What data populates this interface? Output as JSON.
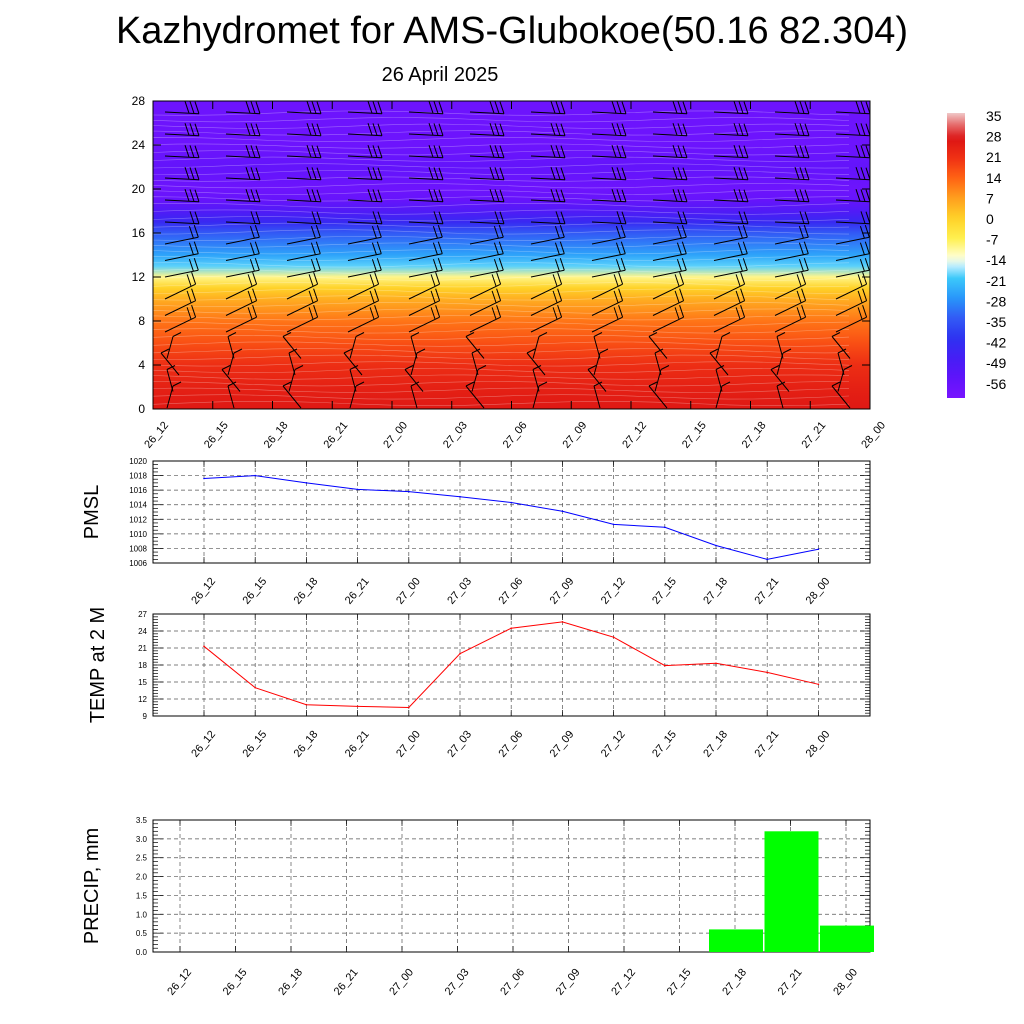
{
  "title": "Kazhydromet for AMS-Glubokoe(50.16 82.304)",
  "subtitle": "26 April 2025",
  "time_labels": [
    "26_12",
    "26_15",
    "26_18",
    "26_21",
    "27_00",
    "27_03",
    "27_06",
    "27_09",
    "27_12",
    "27_15",
    "27_18",
    "27_21",
    "28_00"
  ],
  "chart_data": [
    {
      "type": "heatmap",
      "title": "",
      "xlabel": "",
      "ylabel": "",
      "x": [
        "26_12",
        "26_15",
        "26_18",
        "26_21",
        "27_00",
        "27_03",
        "27_06",
        "27_09",
        "27_12",
        "27_15",
        "27_18",
        "27_21",
        "28_00"
      ],
      "y_ticks": [
        0,
        4,
        8,
        12,
        16,
        20,
        24,
        28
      ],
      "ylim": [
        0,
        28
      ],
      "colorbar_ticks": [
        35,
        28,
        21,
        14,
        7,
        0,
        -7,
        -14,
        -21,
        -28,
        -35,
        -42,
        -49,
        -56
      ],
      "colorbar_range": [
        -63,
        37
      ],
      "profile": {
        "heights": [
          0,
          2,
          4,
          6,
          8,
          10,
          11,
          12,
          13,
          14,
          16,
          17,
          18,
          19,
          20,
          22,
          24,
          28
        ],
        "values": [
          27,
          25,
          22,
          17,
          12,
          5,
          0,
          -10,
          -20,
          -26,
          -35,
          -45,
          -52,
          -58,
          -60,
          -57,
          -60,
          -60
        ]
      },
      "overlay": "wind barbs"
    },
    {
      "type": "line",
      "ylabel": "PMSL",
      "x": [
        "26_12",
        "26_15",
        "26_18",
        "26_21",
        "27_00",
        "27_03",
        "27_06",
        "27_09",
        "27_12",
        "27_15",
        "27_18",
        "27_21",
        "28_00"
      ],
      "y_ticks": [
        1006,
        1008,
        1010,
        1012,
        1014,
        1016,
        1018,
        1020
      ],
      "ylim": [
        1006,
        1020
      ],
      "series": [
        {
          "values": [
            1017.6,
            1018.0,
            1017.0,
            1016.1,
            1015.8,
            1015.1,
            1014.3,
            1013.1,
            1011.3,
            1010.9,
            1008.4,
            1006.5,
            1007.9
          ],
          "color": "#0000ff"
        }
      ],
      "grid": true
    },
    {
      "type": "line",
      "ylabel": "TEMP at 2 M",
      "x": [
        "26_12",
        "26_15",
        "26_18",
        "26_21",
        "27_00",
        "27_03",
        "27_06",
        "27_09",
        "27_12",
        "27_15",
        "27_18",
        "27_21",
        "28_00"
      ],
      "y_ticks": [
        9,
        12,
        15,
        18,
        21,
        24,
        27
      ],
      "ylim": [
        9,
        27
      ],
      "series": [
        {
          "values": [
            21.3,
            14.0,
            11.0,
            10.7,
            10.5,
            20.0,
            24.5,
            25.6,
            22.9,
            17.9,
            18.3,
            16.7,
            14.6
          ],
          "color": "#ff0000"
        }
      ],
      "grid": true
    },
    {
      "type": "bar",
      "ylabel": "PRECIP, mm",
      "categories": [
        "26_12",
        "26_15",
        "26_18",
        "26_21",
        "27_00",
        "27_03",
        "27_06",
        "27_09",
        "27_12",
        "27_15",
        "27_18",
        "27_21",
        "28_00"
      ],
      "y_ticks": [
        "0.0",
        "0.5",
        "1.0",
        "1.5",
        "2.0",
        "2.5",
        "3.0",
        "3.5"
      ],
      "ylim": [
        0,
        3.5
      ],
      "series": [
        {
          "values": [
            0,
            0,
            0,
            0,
            0,
            0,
            0,
            0,
            0,
            0,
            0.6,
            3.2,
            0.7
          ],
          "color": "#00ff00"
        }
      ],
      "grid": true
    }
  ]
}
